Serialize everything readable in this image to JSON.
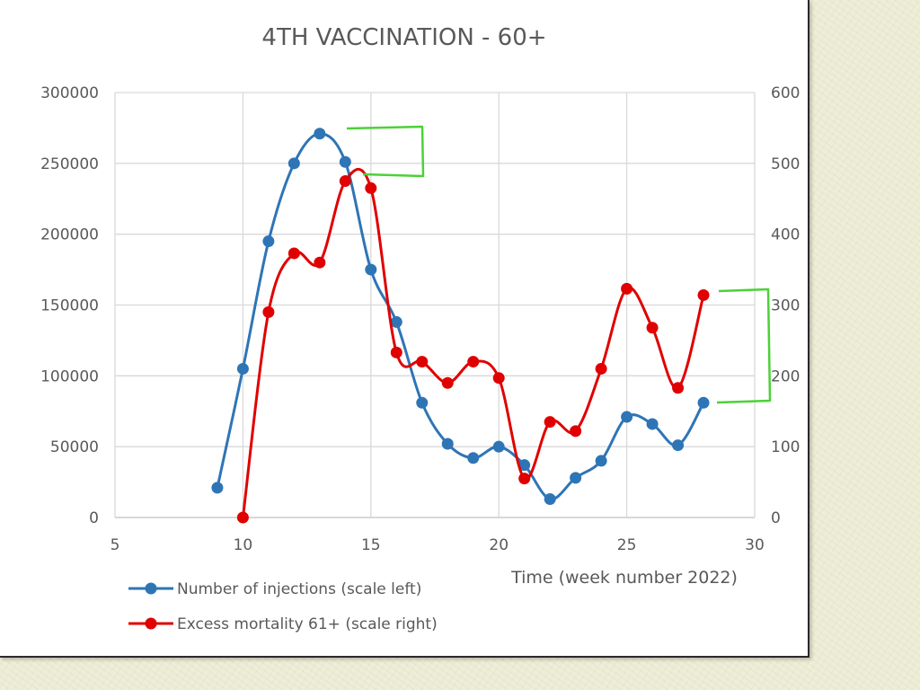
{
  "chart_data": {
    "type": "line",
    "title": "4TH VACCINATION - 60+",
    "xlabel": "Time (week number 2022)",
    "xlim": [
      5,
      30
    ],
    "x_ticks": [
      5,
      10,
      15,
      20,
      25,
      30
    ],
    "ylim_left": [
      0,
      300000
    ],
    "y_ticks_left": [
      0,
      50000,
      100000,
      150000,
      200000,
      250000,
      300000
    ],
    "ylim_right": [
      0,
      600
    ],
    "y_ticks_right": [
      0,
      100,
      200,
      300,
      400,
      500,
      600
    ],
    "grid": true,
    "legend_position": "bottom-left",
    "series": [
      {
        "name": "Number of injections (scale left)",
        "axis": "left",
        "color": "#2e75b6",
        "x": [
          9,
          10,
          11,
          12,
          13,
          14,
          15,
          16,
          17,
          18,
          19,
          20,
          21,
          22,
          23,
          24,
          25,
          26,
          27,
          28
        ],
        "y": [
          21000,
          105000,
          195000,
          250000,
          271000,
          251000,
          175000,
          138000,
          81000,
          52000,
          42000,
          50000,
          37000,
          13000,
          28000,
          40000,
          71000,
          66000,
          51000,
          81000
        ]
      },
      {
        "name": "Excess mortality 61+ (scale right)",
        "axis": "right",
        "color": "#e00000",
        "x": [
          10,
          11,
          12,
          13,
          14,
          15,
          16,
          17,
          18,
          19,
          20,
          21,
          22,
          23,
          24,
          25,
          26,
          27,
          28
        ],
        "y": [
          0,
          290,
          373,
          360,
          475,
          465,
          233,
          220,
          190,
          220,
          197,
          55,
          135,
          122,
          210,
          323,
          268,
          183,
          314
        ]
      }
    ],
    "annotation_color": "#4cd137"
  }
}
